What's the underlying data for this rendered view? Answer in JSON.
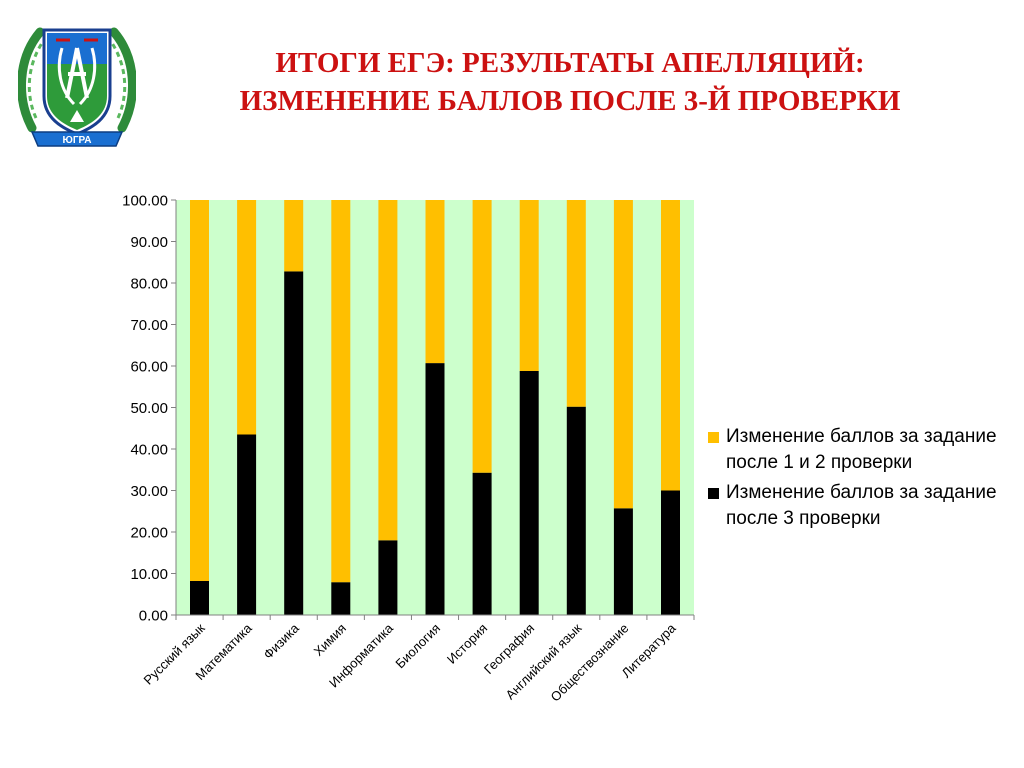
{
  "slide": {
    "title_line1": "ИТОГИ ЕГЭ: РЕЗУЛЬТАТЫ АПЕЛЛЯЦИЙ:",
    "title_line2": "ИЗМЕНЕНИЕ БАЛЛОВ ПОСЛЕ 3-Й ПРОВЕРКИ",
    "logo_text": "ЮГРА"
  },
  "colors": {
    "title": "#cc1111",
    "plot_background": "#ccffcc",
    "series_1": "#ffbf00",
    "series_2": "#000000"
  },
  "chart_data": {
    "type": "bar",
    "stacked": true,
    "categories": [
      "Русский язык",
      "Математика",
      "Физика",
      "Химия",
      "Информатика",
      "Биология",
      "История",
      "География",
      "Английский язык",
      "Обществознание",
      "Литература"
    ],
    "series": [
      {
        "name": "Изменение баллов за задание после 3 проверки",
        "color": "#000000",
        "values": [
          8.2,
          43.5,
          82.8,
          7.9,
          18.0,
          60.7,
          34.3,
          58.8,
          50.2,
          25.7,
          30.0
        ]
      },
      {
        "name": "Изменение баллов за задание после 1 и 2 проверки",
        "color": "#ffbf00",
        "values": [
          91.8,
          56.5,
          17.2,
          92.1,
          82.0,
          39.3,
          65.7,
          41.2,
          49.8,
          74.3,
          70.0
        ]
      }
    ],
    "ylim": [
      0,
      100
    ],
    "yticks": [
      "0.00",
      "10.00",
      "20.00",
      "30.00",
      "40.00",
      "50.00",
      "60.00",
      "70.00",
      "80.00",
      "90.00",
      "100.00"
    ],
    "grid": false,
    "legend_position": "right",
    "legend": [
      {
        "label": "Изменение баллов за задание после 1 и 2 проверки",
        "color": "#ffbf00"
      },
      {
        "label": "Изменение баллов за задание после 3 проверки",
        "color": "#000000"
      }
    ],
    "xlabel": "",
    "ylabel": ""
  }
}
